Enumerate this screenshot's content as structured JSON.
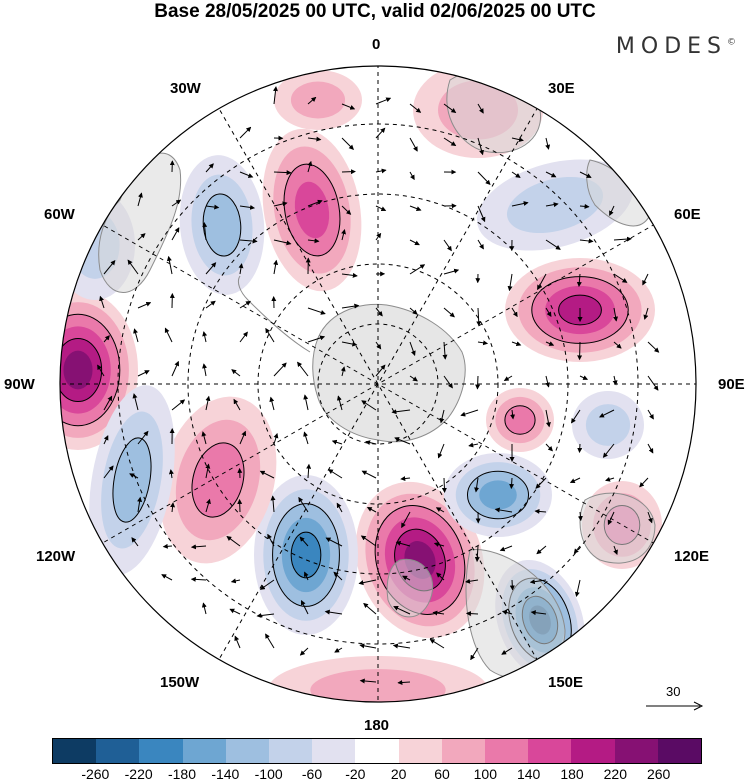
{
  "title": "Base 28/05/2025 00 UTC, valid 02/06/2025 00 UTC",
  "brand": "MODES",
  "brand_mark": "©",
  "longitude_labels": {
    "top": "0",
    "bottom": "180",
    "left": "90W",
    "right": "90E",
    "w30": "30W",
    "e30": "30E",
    "w60": "60W",
    "e60": "60E",
    "w120": "120W",
    "e120": "120E",
    "w150": "150W",
    "e150": "150E"
  },
  "vector_reference": "30",
  "colorbar": {
    "colors": [
      "#0d3b63",
      "#1f5f96",
      "#3a86bf",
      "#6ea6d2",
      "#9ebfe0",
      "#c3d2ea",
      "#e2e1f0",
      "#ffffff",
      "#f7d3d8",
      "#f2a8bd",
      "#ea79aa",
      "#d9479a",
      "#b41b84",
      "#861173",
      "#5a0b64"
    ],
    "tick_labels": [
      "-260",
      "-220",
      "-180",
      "-140",
      "-100",
      "-60",
      "-20",
      "20",
      "60",
      "100",
      "140",
      "180",
      "220",
      "260"
    ]
  },
  "anomalies": [
    {
      "name": "anom-pos-80w",
      "value": 230
    },
    {
      "name": "anom-pos-30w",
      "value": 160
    },
    {
      "name": "anom-neg-45w",
      "value": -110
    },
    {
      "name": "anom-neg-70w",
      "value": -70
    },
    {
      "name": "anom-pos-10e",
      "value": 80
    },
    {
      "name": "anom-neg-45e",
      "value": -90
    },
    {
      "name": "anom-pos-70e",
      "value": 190
    },
    {
      "name": "anom-pos-110e",
      "value": 110
    },
    {
      "name": "anom-neg-95e",
      "value": -70
    },
    {
      "name": "anom-neg-145e",
      "value": -240
    },
    {
      "name": "anom-pos-170e",
      "value": 240
    },
    {
      "name": "anom-neg-155w",
      "value": -210
    },
    {
      "name": "anom-pos-125w",
      "value": 120
    },
    {
      "name": "anom-neg-110w",
      "value": -100
    },
    {
      "name": "anom-neg-130e",
      "value": -170
    },
    {
      "name": "anom-pos-125e",
      "value": 100
    },
    {
      "name": "anom-pos-180",
      "value": 80
    },
    {
      "name": "anom-pos-15w",
      "value": 60
    }
  ]
}
